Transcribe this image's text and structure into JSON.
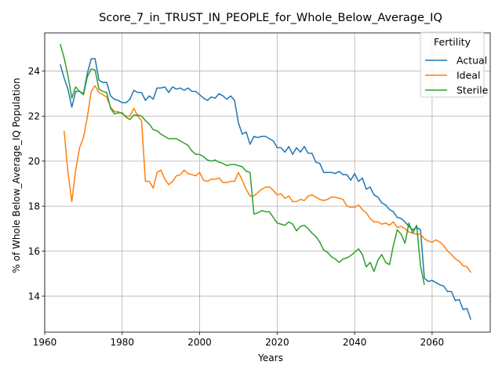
{
  "chart_data": {
    "type": "line",
    "title": "Score_7_in_TRUST_IN_PEOPLE_for_Whole_Below_Average_IQ",
    "xlabel": "Years",
    "ylabel": "% of Whole Below_Average_IQ Population",
    "xlim": [
      1960,
      2075
    ],
    "ylim": [
      12.4,
      25.7
    ],
    "xticks": [
      1960,
      1980,
      2000,
      2020,
      2040,
      2060
    ],
    "yticks": [
      14,
      16,
      18,
      20,
      22,
      24
    ],
    "grid": true,
    "legend": {
      "title": "Fertility",
      "position": "top-right"
    },
    "series": [
      {
        "name": "Actual",
        "color": "#1f77b4",
        "points": [
          [
            1964,
            24.3
          ],
          [
            1965,
            23.7
          ],
          [
            1966,
            23.2
          ],
          [
            1967,
            22.4
          ],
          [
            1968,
            23.1
          ],
          [
            1969,
            23.1
          ],
          [
            1970,
            23.0
          ],
          [
            1971,
            23.9
          ],
          [
            1972,
            24.55
          ],
          [
            1973,
            24.55
          ],
          [
            1974,
            23.6
          ],
          [
            1975,
            23.5
          ],
          [
            1976,
            23.5
          ],
          [
            1977,
            22.9
          ],
          [
            1978,
            22.75
          ],
          [
            1979,
            22.7
          ],
          [
            1980,
            22.6
          ],
          [
            1981,
            22.6
          ],
          [
            1982,
            22.75
          ],
          [
            1983,
            23.15
          ],
          [
            1984,
            23.05
          ],
          [
            1985,
            23.05
          ],
          [
            1986,
            22.7
          ],
          [
            1987,
            22.9
          ],
          [
            1988,
            22.75
          ],
          [
            1989,
            23.25
          ],
          [
            1990,
            23.25
          ],
          [
            1991,
            23.3
          ],
          [
            1992,
            23.05
          ],
          [
            1993,
            23.3
          ],
          [
            1994,
            23.2
          ],
          [
            1995,
            23.25
          ],
          [
            1996,
            23.15
          ],
          [
            1997,
            23.25
          ],
          [
            1998,
            23.1
          ],
          [
            1999,
            23.1
          ],
          [
            2000,
            22.95
          ],
          [
            2001,
            22.8
          ],
          [
            2002,
            22.7
          ],
          [
            2003,
            22.85
          ],
          [
            2004,
            22.8
          ],
          [
            2005,
            23.0
          ],
          [
            2006,
            22.9
          ],
          [
            2007,
            22.75
          ],
          [
            2008,
            22.9
          ],
          [
            2009,
            22.7
          ],
          [
            2010,
            21.7
          ],
          [
            2011,
            21.2
          ],
          [
            2012,
            21.3
          ],
          [
            2013,
            20.75
          ],
          [
            2014,
            21.1
          ],
          [
            2015,
            21.05
          ],
          [
            2016,
            21.1
          ],
          [
            2017,
            21.1
          ],
          [
            2018,
            21.0
          ],
          [
            2019,
            20.9
          ],
          [
            2020,
            20.6
          ],
          [
            2021,
            20.6
          ],
          [
            2022,
            20.4
          ],
          [
            2023,
            20.65
          ],
          [
            2024,
            20.3
          ],
          [
            2025,
            20.6
          ],
          [
            2026,
            20.4
          ],
          [
            2027,
            20.65
          ],
          [
            2028,
            20.35
          ],
          [
            2029,
            20.35
          ],
          [
            2030,
            19.95
          ],
          [
            2031,
            19.9
          ],
          [
            2032,
            19.5
          ],
          [
            2033,
            19.5
          ],
          [
            2034,
            19.5
          ],
          [
            2035,
            19.45
          ],
          [
            2036,
            19.55
          ],
          [
            2037,
            19.4
          ],
          [
            2038,
            19.4
          ],
          [
            2039,
            19.15
          ],
          [
            2040,
            19.45
          ],
          [
            2041,
            19.1
          ],
          [
            2042,
            19.25
          ],
          [
            2043,
            18.75
          ],
          [
            2044,
            18.85
          ],
          [
            2045,
            18.5
          ],
          [
            2046,
            18.4
          ],
          [
            2047,
            18.15
          ],
          [
            2048,
            18.05
          ],
          [
            2049,
            17.85
          ],
          [
            2050,
            17.75
          ],
          [
            2051,
            17.5
          ],
          [
            2052,
            17.45
          ],
          [
            2053,
            17.3
          ],
          [
            2054,
            17.1
          ],
          [
            2055,
            16.95
          ],
          [
            2056,
            17.05
          ],
          [
            2057,
            16.95
          ],
          [
            2058,
            14.8
          ],
          [
            2059,
            14.65
          ],
          [
            2060,
            14.7
          ],
          [
            2061,
            14.6
          ],
          [
            2062,
            14.5
          ],
          [
            2063,
            14.45
          ],
          [
            2064,
            14.2
          ],
          [
            2065,
            14.2
          ],
          [
            2066,
            13.8
          ],
          [
            2067,
            13.85
          ],
          [
            2068,
            13.4
          ],
          [
            2069,
            13.45
          ],
          [
            2070,
            12.95
          ]
        ]
      },
      {
        "name": "Ideal",
        "color": "#ff7f0e",
        "points": [
          [
            1965,
            21.35
          ],
          [
            1966,
            19.5
          ],
          [
            1967,
            18.2
          ],
          [
            1968,
            19.6
          ],
          [
            1969,
            20.6
          ],
          [
            1970,
            21.05
          ],
          [
            1971,
            21.95
          ],
          [
            1972,
            23.1
          ],
          [
            1973,
            23.35
          ],
          [
            1974,
            23.05
          ],
          [
            1975,
            22.95
          ],
          [
            1976,
            22.85
          ],
          [
            1977,
            22.4
          ],
          [
            1978,
            22.2
          ],
          [
            1979,
            22.2
          ],
          [
            1980,
            22.1
          ],
          [
            1981,
            22.0
          ],
          [
            1982,
            22.0
          ],
          [
            1983,
            22.35
          ],
          [
            1984,
            22.0
          ],
          [
            1985,
            21.8
          ],
          [
            1986,
            19.1
          ],
          [
            1987,
            19.1
          ],
          [
            1988,
            18.8
          ],
          [
            1989,
            19.5
          ],
          [
            1990,
            19.6
          ],
          [
            1991,
            19.2
          ],
          [
            1992,
            18.95
          ],
          [
            1993,
            19.1
          ],
          [
            1994,
            19.35
          ],
          [
            1995,
            19.4
          ],
          [
            1996,
            19.6
          ],
          [
            1997,
            19.45
          ],
          [
            1998,
            19.4
          ],
          [
            1999,
            19.35
          ],
          [
            2000,
            19.5
          ],
          [
            2001,
            19.15
          ],
          [
            2002,
            19.1
          ],
          [
            2003,
            19.2
          ],
          [
            2004,
            19.2
          ],
          [
            2005,
            19.25
          ],
          [
            2006,
            19.05
          ],
          [
            2007,
            19.05
          ],
          [
            2008,
            19.1
          ],
          [
            2009,
            19.1
          ],
          [
            2010,
            19.5
          ],
          [
            2011,
            19.15
          ],
          [
            2012,
            18.75
          ],
          [
            2013,
            18.45
          ],
          [
            2014,
            18.45
          ],
          [
            2015,
            18.6
          ],
          [
            2016,
            18.75
          ],
          [
            2017,
            18.85
          ],
          [
            2018,
            18.85
          ],
          [
            2019,
            18.7
          ],
          [
            2020,
            18.5
          ],
          [
            2021,
            18.55
          ],
          [
            2022,
            18.35
          ],
          [
            2023,
            18.45
          ],
          [
            2024,
            18.2
          ],
          [
            2025,
            18.2
          ],
          [
            2026,
            18.3
          ],
          [
            2027,
            18.25
          ],
          [
            2028,
            18.45
          ],
          [
            2029,
            18.5
          ],
          [
            2030,
            18.4
          ],
          [
            2031,
            18.3
          ],
          [
            2032,
            18.25
          ],
          [
            2033,
            18.3
          ],
          [
            2034,
            18.4
          ],
          [
            2035,
            18.4
          ],
          [
            2036,
            18.35
          ],
          [
            2037,
            18.3
          ],
          [
            2038,
            18.0
          ],
          [
            2039,
            17.95
          ],
          [
            2040,
            17.95
          ],
          [
            2041,
            18.05
          ],
          [
            2042,
            17.85
          ],
          [
            2043,
            17.7
          ],
          [
            2044,
            17.45
          ],
          [
            2045,
            17.3
          ],
          [
            2046,
            17.3
          ],
          [
            2047,
            17.2
          ],
          [
            2048,
            17.25
          ],
          [
            2049,
            17.15
          ],
          [
            2050,
            17.3
          ],
          [
            2051,
            17.05
          ],
          [
            2052,
            17.1
          ],
          [
            2053,
            17.0
          ],
          [
            2054,
            16.85
          ],
          [
            2055,
            16.8
          ],
          [
            2056,
            16.75
          ],
          [
            2057,
            16.75
          ],
          [
            2058,
            16.55
          ],
          [
            2059,
            16.45
          ],
          [
            2060,
            16.4
          ],
          [
            2061,
            16.5
          ],
          [
            2062,
            16.4
          ],
          [
            2063,
            16.25
          ],
          [
            2064,
            16.0
          ],
          [
            2065,
            15.85
          ],
          [
            2066,
            15.65
          ],
          [
            2067,
            15.55
          ],
          [
            2068,
            15.35
          ],
          [
            2069,
            15.3
          ],
          [
            2070,
            15.05
          ]
        ]
      },
      {
        "name": "Sterile",
        "color": "#2ca02c",
        "points": [
          [
            1964,
            25.2
          ],
          [
            1965,
            24.6
          ],
          [
            1966,
            23.8
          ],
          [
            1967,
            22.8
          ],
          [
            1968,
            23.3
          ],
          [
            1969,
            23.1
          ],
          [
            1970,
            22.95
          ],
          [
            1971,
            23.75
          ],
          [
            1972,
            24.1
          ],
          [
            1973,
            24.05
          ],
          [
            1974,
            23.2
          ],
          [
            1975,
            23.1
          ],
          [
            1976,
            23.05
          ],
          [
            1977,
            22.35
          ],
          [
            1978,
            22.1
          ],
          [
            1979,
            22.15
          ],
          [
            1980,
            22.15
          ],
          [
            1981,
            21.95
          ],
          [
            1982,
            21.85
          ],
          [
            1983,
            22.05
          ],
          [
            1984,
            22.05
          ],
          [
            1985,
            22.0
          ],
          [
            1986,
            21.8
          ],
          [
            1987,
            21.65
          ],
          [
            1988,
            21.4
          ],
          [
            1989,
            21.35
          ],
          [
            1990,
            21.2
          ],
          [
            1991,
            21.1
          ],
          [
            1992,
            21.0
          ],
          [
            1993,
            21.0
          ],
          [
            1994,
            21.0
          ],
          [
            1995,
            20.9
          ],
          [
            1996,
            20.8
          ],
          [
            1997,
            20.7
          ],
          [
            1998,
            20.45
          ],
          [
            1999,
            20.3
          ],
          [
            2000,
            20.3
          ],
          [
            2001,
            20.2
          ],
          [
            2002,
            20.05
          ],
          [
            2003,
            20.0
          ],
          [
            2004,
            20.05
          ],
          [
            2005,
            19.95
          ],
          [
            2006,
            19.9
          ],
          [
            2007,
            19.8
          ],
          [
            2008,
            19.85
          ],
          [
            2009,
            19.85
          ],
          [
            2010,
            19.8
          ],
          [
            2011,
            19.75
          ],
          [
            2012,
            19.55
          ],
          [
            2013,
            19.5
          ],
          [
            2014,
            17.65
          ],
          [
            2015,
            17.7
          ],
          [
            2016,
            17.8
          ],
          [
            2017,
            17.75
          ],
          [
            2018,
            17.75
          ],
          [
            2019,
            17.5
          ],
          [
            2020,
            17.25
          ],
          [
            2021,
            17.2
          ],
          [
            2022,
            17.15
          ],
          [
            2023,
            17.3
          ],
          [
            2024,
            17.2
          ],
          [
            2025,
            16.9
          ],
          [
            2026,
            17.1
          ],
          [
            2027,
            17.15
          ],
          [
            2028,
            17.0
          ],
          [
            2029,
            16.8
          ],
          [
            2030,
            16.65
          ],
          [
            2031,
            16.4
          ],
          [
            2032,
            16.05
          ],
          [
            2033,
            15.95
          ],
          [
            2034,
            15.75
          ],
          [
            2035,
            15.65
          ],
          [
            2036,
            15.5
          ],
          [
            2037,
            15.65
          ],
          [
            2038,
            15.7
          ],
          [
            2039,
            15.8
          ],
          [
            2040,
            15.95
          ],
          [
            2041,
            16.1
          ],
          [
            2042,
            15.85
          ],
          [
            2043,
            15.3
          ],
          [
            2044,
            15.5
          ],
          [
            2045,
            15.1
          ],
          [
            2046,
            15.6
          ],
          [
            2047,
            15.85
          ],
          [
            2048,
            15.5
          ],
          [
            2049,
            15.4
          ],
          [
            2050,
            16.25
          ],
          [
            2051,
            16.95
          ],
          [
            2052,
            16.75
          ],
          [
            2053,
            16.35
          ],
          [
            2054,
            17.25
          ],
          [
            2055,
            16.8
          ],
          [
            2056,
            17.15
          ],
          [
            2057,
            15.35
          ],
          [
            2058,
            14.5
          ]
        ]
      }
    ]
  }
}
